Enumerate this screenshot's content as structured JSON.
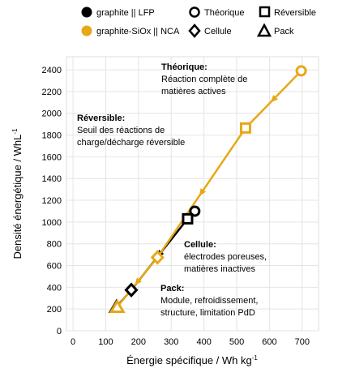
{
  "chart_data": {
    "type": "line",
    "xlabel": "Énergie spécifique / Wh kg",
    "xlabel_sup": "-1",
    "ylabel": "Densité énergétique / WhL",
    "ylabel_sup": "-1",
    "xlim": [
      -20,
      750
    ],
    "ylim": [
      0,
      2520
    ],
    "xticks": [
      0,
      100,
      200,
      300,
      400,
      500,
      600,
      700
    ],
    "yticks": [
      0,
      200,
      400,
      600,
      800,
      1000,
      1200,
      1400,
      1600,
      1800,
      2000,
      2200,
      2400
    ],
    "grid": true,
    "legend": {
      "placement": "top",
      "series_entries": [
        {
          "label": "graphite || LFP",
          "color": "#000000",
          "marker": "dot"
        },
        {
          "label": "graphite-SiOx || NCA",
          "color": "#e6a817",
          "marker": "dot"
        }
      ],
      "marker_entries": [
        {
          "label": "Théorique",
          "marker": "circle"
        },
        {
          "label": "Réversible",
          "marker": "square"
        },
        {
          "label": "Cellule",
          "marker": "diamond"
        },
        {
          "label": "Pack",
          "marker": "triangle"
        }
      ]
    },
    "series": [
      {
        "name": "graphite || LFP",
        "color": "#000000",
        "points": [
          {
            "level": "Théorique",
            "marker": "circle",
            "x": 372,
            "y": 1100
          },
          {
            "level": "Réversible",
            "marker": "square",
            "x": 350,
            "y": 1030
          },
          {
            "level": "Cellule",
            "marker": "diamond",
            "x": 178,
            "y": 375
          },
          {
            "level": "Pack",
            "marker": "triangle",
            "x": 133,
            "y": 220
          }
        ]
      },
      {
        "name": "graphite-SiOx || NCA",
        "color": "#e6a817",
        "points": [
          {
            "level": "Théorique",
            "marker": "circle",
            "x": 697,
            "y": 2390
          },
          {
            "level": "Réversible",
            "marker": "square",
            "x": 527,
            "y": 1865
          },
          {
            "level": "Cellule",
            "marker": "diamond",
            "x": 258,
            "y": 675
          },
          {
            "level": "Pack",
            "marker": "triangle",
            "x": 135,
            "y": 220
          }
        ]
      }
    ],
    "annotations": [
      {
        "title": "Théorique:",
        "lines": [
          "Réaction complète de",
          "matières actives"
        ]
      },
      {
        "title": "Réversible:",
        "lines": [
          "Seuil des réactions de",
          "charge/décharge réversible"
        ]
      },
      {
        "title": "Cellule:",
        "lines": [
          "électrodes poreuses,",
          "matières inactives"
        ]
      },
      {
        "title": "Pack:",
        "lines": [
          "Module, refroidissement,",
          "structure, limitation PdD"
        ]
      }
    ]
  }
}
